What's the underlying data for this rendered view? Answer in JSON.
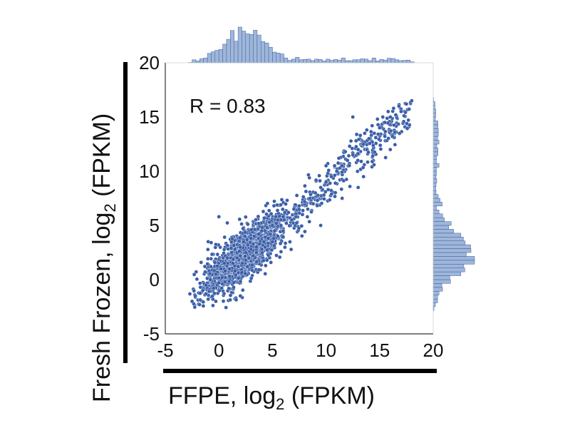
{
  "chart_data": {
    "type": "scatter",
    "annotation": "R = 0.83",
    "xlabel": {
      "main": "FFPE,  log",
      "sub": "2",
      "unit": " (FPKM)"
    },
    "ylabel": {
      "main": "Fresh Frozen,  log",
      "sub": "2",
      "unit": " (FPKM)"
    },
    "xlim": [
      -5,
      20
    ],
    "ylim": [
      -5,
      20
    ],
    "x_ticks": [
      "-5",
      "0",
      "5",
      "10",
      "15",
      "20"
    ],
    "y_ticks": [
      "-5",
      "0",
      "5",
      "10",
      "15",
      "20"
    ],
    "grid": false,
    "point_color": "#3a5ea8",
    "hist_color": "#9fb6d8",
    "hist_edge": "#3a5ea8",
    "series": [
      {
        "points": [
          [
            -2.5,
            -2.0
          ],
          [
            -2.2,
            -1.5
          ],
          [
            -1.8,
            -2.3
          ],
          [
            -1.5,
            -1.0
          ],
          [
            -1.2,
            -0.5
          ],
          [
            -1.0,
            -1.8
          ],
          [
            -0.8,
            0.0
          ],
          [
            -0.5,
            -0.8
          ],
          [
            -0.3,
            0.5
          ],
          [
            0.0,
            -0.3
          ],
          [
            0.2,
            1.0
          ],
          [
            0.3,
            0.2
          ],
          [
            0.5,
            1.5
          ],
          [
            0.6,
            0.8
          ],
          [
            0.8,
            2.0
          ],
          [
            1.0,
            1.0
          ],
          [
            1.0,
            0.3
          ],
          [
            1.2,
            2.5
          ],
          [
            1.3,
            1.5
          ],
          [
            1.5,
            0.8
          ],
          [
            1.5,
            2.8
          ],
          [
            1.7,
            2.0
          ],
          [
            1.8,
            1.2
          ],
          [
            2.0,
            3.0
          ],
          [
            2.0,
            2.2
          ],
          [
            2.2,
            1.5
          ],
          [
            2.3,
            3.5
          ],
          [
            2.5,
            2.5
          ],
          [
            2.5,
            1.8
          ],
          [
            2.7,
            3.2
          ],
          [
            2.8,
            2.0
          ],
          [
            3.0,
            3.8
          ],
          [
            3.0,
            2.8
          ],
          [
            3.2,
            2.2
          ],
          [
            3.3,
            4.0
          ],
          [
            3.5,
            3.0
          ],
          [
            3.5,
            2.5
          ],
          [
            3.7,
            4.2
          ],
          [
            3.8,
            3.3
          ],
          [
            4.0,
            2.8
          ],
          [
            4.0,
            4.5
          ],
          [
            4.2,
            3.5
          ],
          [
            4.3,
            3.0
          ],
          [
            4.5,
            4.8
          ],
          [
            4.6,
            3.8
          ],
          [
            4.8,
            4.2
          ],
          [
            5.0,
            5.0
          ],
          [
            5.0,
            3.5
          ],
          [
            5.2,
            4.5
          ],
          [
            5.5,
            5.5
          ],
          [
            5.5,
            4.0
          ],
          [
            5.8,
            5.0
          ],
          [
            6.0,
            5.8
          ],
          [
            6.0,
            4.5
          ],
          [
            6.3,
            5.2
          ],
          [
            6.5,
            6.2
          ],
          [
            6.8,
            5.5
          ],
          [
            7.0,
            6.5
          ],
          [
            7.2,
            5.8
          ],
          [
            7.5,
            6.8
          ],
          [
            7.8,
            6.0
          ],
          [
            8.0,
            7.2
          ],
          [
            8.3,
            6.5
          ],
          [
            8.5,
            7.5
          ],
          [
            8.8,
            7.0
          ],
          [
            9.0,
            8.0
          ],
          [
            9.2,
            7.3
          ],
          [
            9.5,
            8.5
          ],
          [
            9.8,
            7.8
          ],
          [
            10.0,
            9.0
          ],
          [
            10.2,
            8.3
          ],
          [
            10.5,
            9.5
          ],
          [
            10.8,
            10.5
          ],
          [
            11.0,
            10.0
          ],
          [
            11.2,
            11.2
          ],
          [
            11.5,
            10.5
          ],
          [
            11.8,
            11.8
          ],
          [
            12.0,
            11.0
          ],
          [
            12.2,
            12.3
          ],
          [
            12.5,
            11.5
          ],
          [
            12.8,
            12.8
          ],
          [
            13.0,
            12.0
          ],
          [
            13.2,
            13.3
          ],
          [
            13.5,
            12.5
          ],
          [
            13.8,
            13.8
          ],
          [
            14.0,
            13.0
          ],
          [
            14.3,
            14.2
          ],
          [
            14.5,
            13.5
          ],
          [
            14.8,
            14.8
          ],
          [
            15.0,
            14.0
          ],
          [
            15.3,
            15.0
          ],
          [
            15.5,
            14.5
          ],
          [
            15.8,
            15.5
          ],
          [
            16.0,
            15.0
          ],
          [
            16.3,
            15.8
          ],
          [
            16.5,
            15.2
          ],
          [
            16.8,
            16.0
          ],
          [
            17.0,
            15.5
          ],
          [
            17.5,
            16.2
          ],
          [
            18.0,
            16.5
          ],
          [
            0.0,
            5.8
          ],
          [
            -1.0,
            3.5
          ],
          [
            2.0,
            -1.5
          ],
          [
            9.5,
            5.0
          ],
          [
            11.5,
            7.5
          ],
          [
            13.0,
            8.5
          ],
          [
            13.5,
            9.5
          ],
          [
            16.0,
            12.0
          ],
          [
            12.5,
            15.0
          ],
          [
            10.0,
            10.5
          ]
        ]
      }
    ]
  }
}
